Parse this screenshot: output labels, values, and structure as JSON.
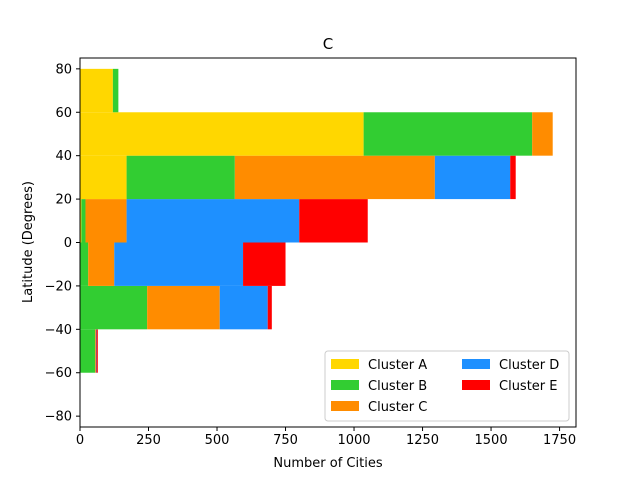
{
  "chart_data": {
    "type": "bar",
    "orientation": "horizontal",
    "stacked": true,
    "title": "C",
    "xlabel": "Number of Cities",
    "ylabel": "Latitude (Degrees)",
    "xlim": [
      0,
      1810
    ],
    "ylim": [
      -85,
      85
    ],
    "xticks": [
      0,
      250,
      500,
      750,
      1000,
      1250,
      1500,
      1750
    ],
    "yticks": [
      -80,
      -60,
      -40,
      -20,
      0,
      20,
      40,
      60,
      80
    ],
    "categories": [
      "-60 to -40",
      "-40 to -20",
      "-20 to 0",
      "0 to 20",
      "20 to 40",
      "40 to 60",
      "60 to 80"
    ],
    "bin_edges": [
      -60,
      -40,
      -20,
      0,
      20,
      40,
      60,
      80
    ],
    "series": [
      {
        "name": "Cluster A",
        "color": "#FFD700",
        "values": [
          0,
          0,
          0,
          5,
          170,
          1035,
          120
        ]
      },
      {
        "name": "Cluster B",
        "color": "#32CD32",
        "values": [
          55,
          245,
          30,
          15,
          395,
          615,
          20
        ]
      },
      {
        "name": "Cluster C",
        "color": "#FF8C00",
        "values": [
          3,
          265,
          95,
          150,
          730,
          75,
          0
        ]
      },
      {
        "name": "Cluster D",
        "color": "#1E90FF",
        "values": [
          2,
          175,
          470,
          630,
          275,
          0,
          0
        ]
      },
      {
        "name": "Cluster E",
        "color": "#FF0000",
        "values": [
          5,
          15,
          155,
          250,
          20,
          0,
          0
        ]
      }
    ],
    "legend_position": "lower-right",
    "legend_columns": 2,
    "grid": false
  }
}
